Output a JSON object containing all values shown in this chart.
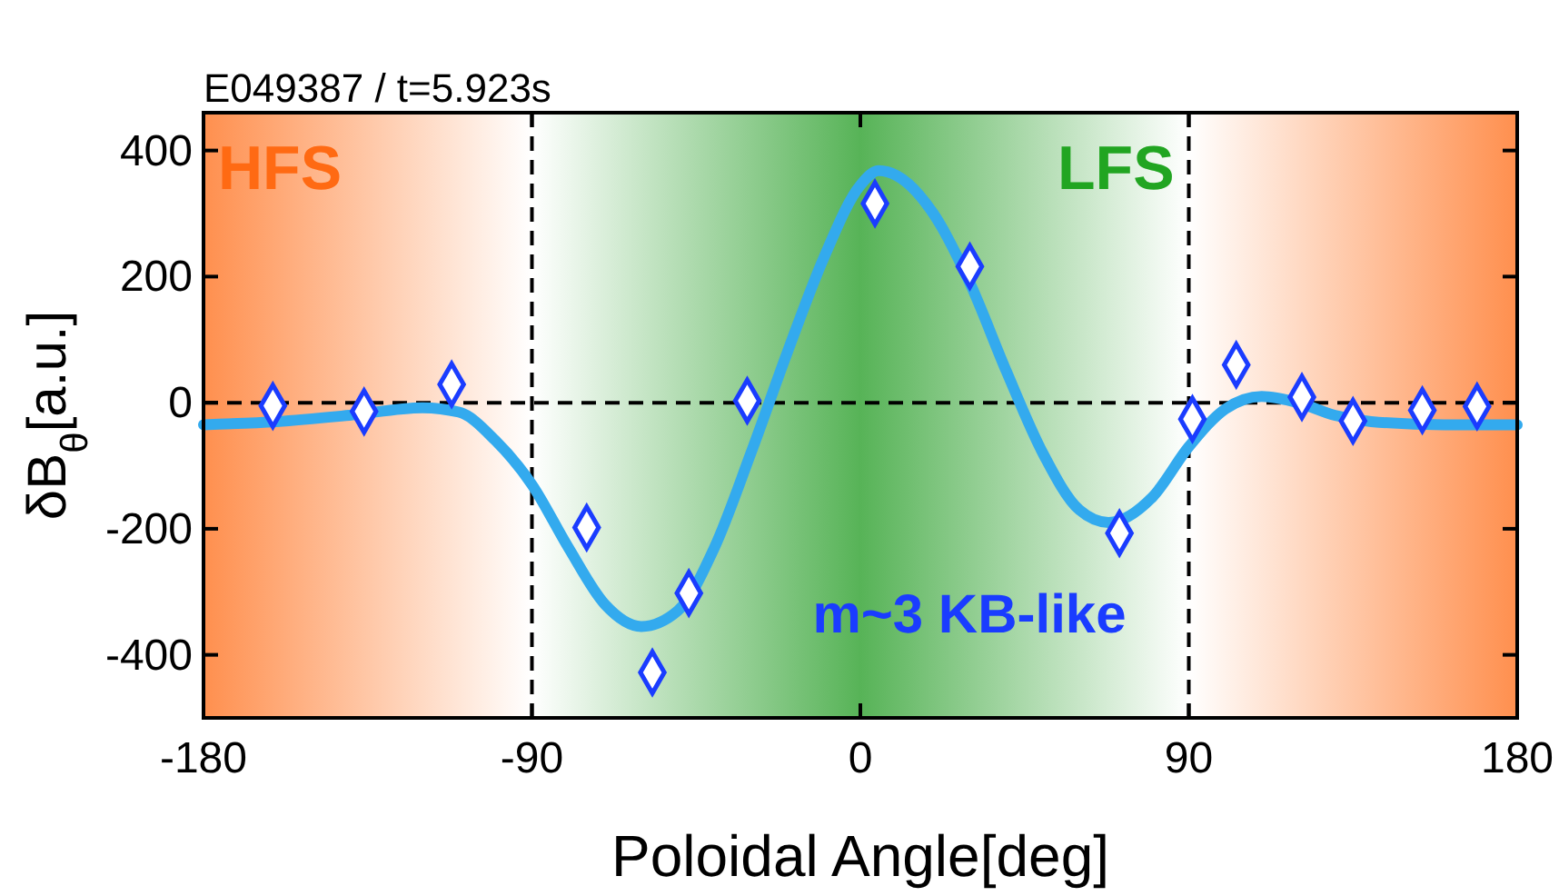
{
  "chart_data": {
    "type": "scatter",
    "title": "E049387 / t=5.923s",
    "xlabel": "Poloidal Angle[deg]",
    "ylabel": "δB$_{θ}$[a.u.]",
    "xlim": [
      -180,
      180
    ],
    "xticks": [
      -180,
      -90,
      0,
      90,
      180
    ],
    "ylim": [
      -500,
      460
    ],
    "yticks": [
      -400,
      -200,
      0,
      200,
      400
    ],
    "series": [
      {
        "type": "line",
        "color": "#33aaee",
        "x": [
          -180,
          -160,
          -140,
          -120,
          -110,
          -100,
          -90,
          -80,
          -70,
          -60,
          -50,
          -40,
          -30,
          -20,
          -10,
          0,
          5,
          10,
          20,
          30,
          40,
          50,
          60,
          68,
          80,
          90,
          100,
          110,
          120,
          130,
          140,
          160,
          180
        ],
        "values": [
          -35,
          -30,
          -20,
          -8,
          -15,
          -60,
          -130,
          -230,
          -320,
          -355,
          -330,
          -230,
          -80,
          80,
          230,
          345,
          368,
          360,
          300,
          190,
          50,
          -80,
          -170,
          -190,
          -150,
          -70,
          -10,
          10,
          0,
          -20,
          -30,
          -35,
          -35
        ]
      },
      {
        "color": "#1a3cff",
        "marker": "diamond",
        "x": [
          -161,
          -136,
          -112,
          -75,
          -57,
          -47,
          -31,
          4,
          30,
          71,
          91,
          103,
          121,
          135,
          154,
          169
        ],
        "values": [
          -5,
          -14,
          29,
          -198,
          -428,
          -302,
          3,
          316,
          216,
          -207,
          -26,
          60,
          9,
          -29,
          -12,
          -6
        ]
      }
    ],
    "bands": [
      {
        "axis": "x",
        "from": -180,
        "to": -90,
        "label": "HFS",
        "color": "#ff6a13"
      },
      {
        "axis": "x",
        "from": -90,
        "to": 90,
        "label": "LFS",
        "color": "#1f9a1f"
      },
      {
        "axis": "x",
        "from": 90,
        "to": 180,
        "color": "#ff6a13"
      }
    ],
    "ref_lines": [
      {
        "axis": "x",
        "value": -90,
        "line_style": "dashed",
        "color": "#000000"
      },
      {
        "axis": "x",
        "value": 90,
        "line_style": "dashed",
        "color": "#000000"
      },
      {
        "axis": "y",
        "value": 0,
        "line_style": "dashed",
        "color": "#000000"
      }
    ],
    "annotations": [
      "m~3 KB-like"
    ]
  }
}
